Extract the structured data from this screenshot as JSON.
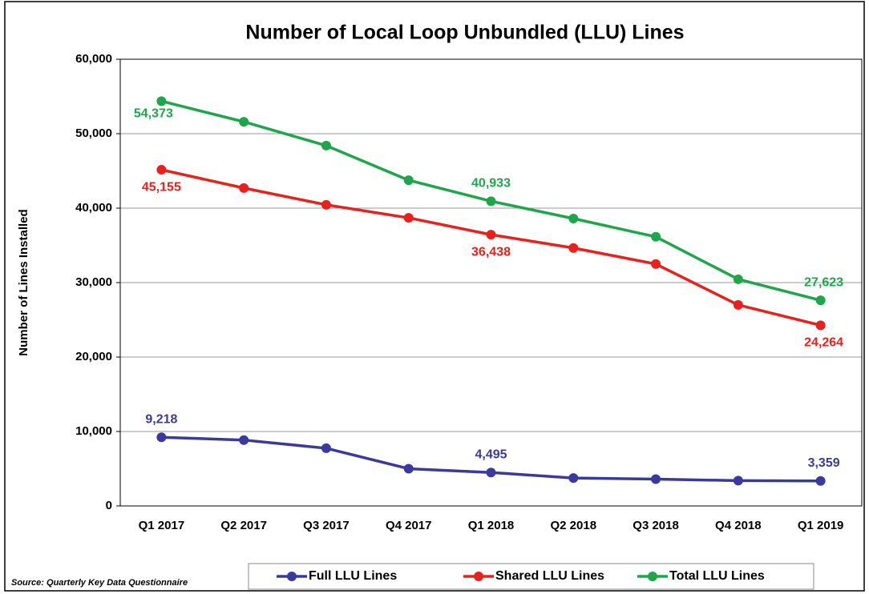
{
  "chart_data": {
    "type": "line",
    "title": "Number of Local Loop Unbundled (LLU) Lines",
    "y_label": "Number of Lines Installed",
    "source": "Source: Quarterly Key Data Questionnaire",
    "categories": [
      "Q1 2017",
      "Q2 2017",
      "Q3 2017",
      "Q4 2017",
      "Q1 2018",
      "Q2 2018",
      "Q3 2018",
      "Q4 2018",
      "Q1 2019"
    ],
    "series": [
      {
        "name": "Full LLU Lines",
        "color": "#3a3a9e",
        "values": [
          9218,
          8850,
          7750,
          5000,
          4495,
          3750,
          3600,
          3400,
          3359
        ],
        "value_labels": [
          "9,218",
          null,
          null,
          null,
          "4,495",
          null,
          null,
          null,
          "3,359"
        ]
      },
      {
        "name": "Shared LLU Lines",
        "color": "#e8211d",
        "values": [
          45155,
          42700,
          40450,
          38700,
          36438,
          34650,
          32500,
          27000,
          24264
        ],
        "value_labels": [
          "45,155",
          null,
          null,
          null,
          "36,438",
          null,
          null,
          null,
          "24,264"
        ]
      },
      {
        "name": "Total LLU Lines",
        "color": "#1fa64b",
        "values": [
          54373,
          51600,
          48400,
          43750,
          40933,
          38600,
          36150,
          30450,
          27623
        ],
        "value_labels": [
          "54,373",
          null,
          null,
          null,
          "40,933",
          null,
          null,
          null,
          "27,623"
        ]
      }
    ],
    "ylim": [
      0,
      60000
    ],
    "yticks": [
      0,
      {
        "value": 10000,
        "label": "10,000"
      },
      {
        "value": 20000,
        "label": "20,000"
      },
      {
        "value": 30000,
        "label": "30,000"
      },
      {
        "value": 40000,
        "label": "40,000"
      },
      {
        "value": 50000,
        "label": "50,000"
      },
      {
        "value": 60000,
        "label": "60,000"
      }
    ],
    "grid": true,
    "legend": "bottom"
  }
}
